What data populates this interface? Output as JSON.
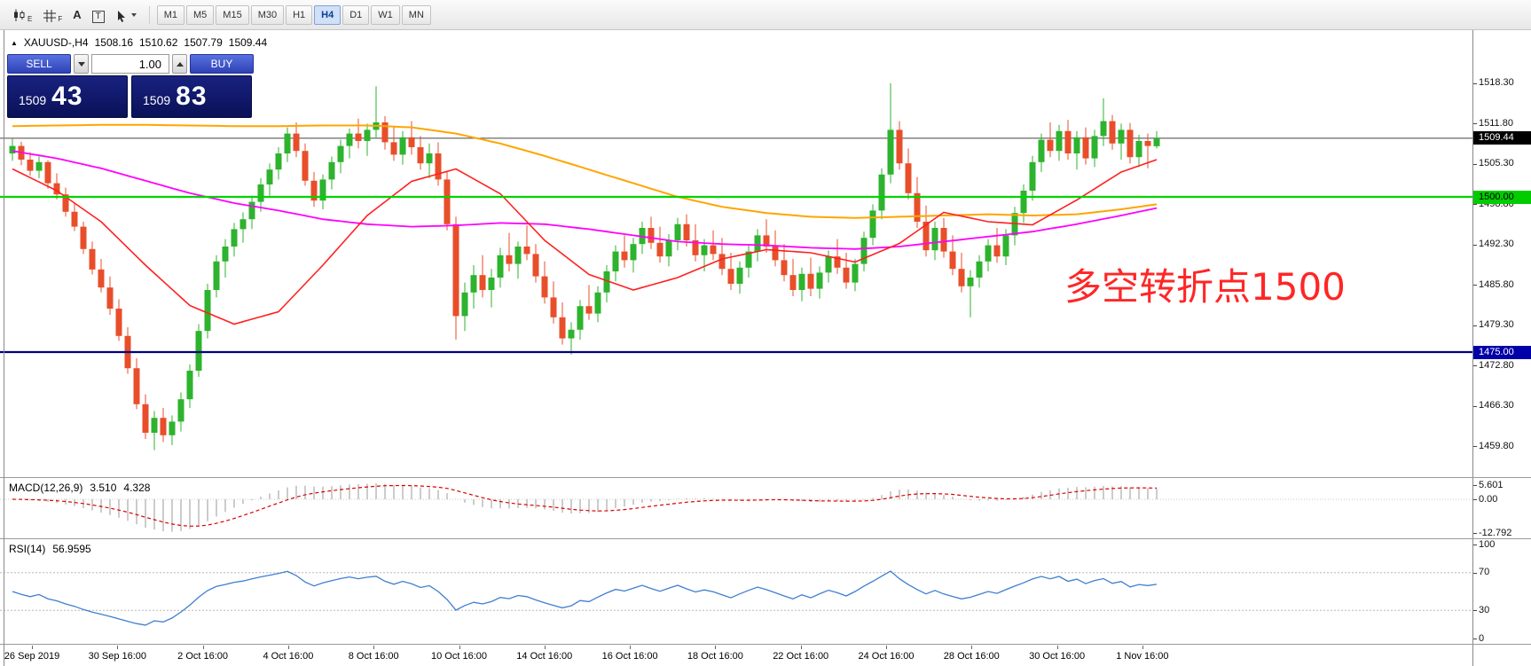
{
  "accent_colors": {
    "buy_sell_blue": "#3a57cc",
    "panel_navy": "#101a78",
    "up_candle": "#2db32d",
    "down_candle": "#e84e2a",
    "ma_orange": "#ffa500",
    "ma_magenta": "#ff00ff",
    "ma_red": "#ff2020",
    "hline_green": "#00d400",
    "hline_navy": "#000080",
    "rsi_blue": "#3e7fd1",
    "macd_histogram": "#b6b6b6",
    "macd_signal": "#dd0000",
    "annotation_red": "#ff2626"
  },
  "toolbar": {
    "icon_subs": [
      "E",
      "F"
    ],
    "icon_labels": {
      "text_tool": "A",
      "label_tool": "T"
    },
    "timeframes": [
      "M1",
      "M5",
      "M15",
      "M30",
      "H1",
      "H4",
      "D1",
      "W1",
      "MN"
    ],
    "active_timeframe": "H4"
  },
  "symbol_header": {
    "marker": "▲",
    "symbol": "XAUUSD-,H4",
    "open": "1508.16",
    "high": "1510.62",
    "low": "1507.79",
    "close": "1509.44"
  },
  "trade_panel": {
    "sell_label": "SELL",
    "buy_label": "BUY",
    "volume": "1.00",
    "bid": {
      "small": "1509",
      "big": "43"
    },
    "ask": {
      "small": "1509",
      "big": "83"
    }
  },
  "price_axis": {
    "ticks": [
      1518.3,
      1511.8,
      1505.3,
      1498.8,
      1492.3,
      1485.8,
      1479.3,
      1472.8,
      1466.3,
      1459.8
    ],
    "current_price": {
      "value": 1509.44,
      "label": "1509.44",
      "bg": "#000000",
      "fg": "#ffffff"
    },
    "levels": [
      {
        "price": 1500.0,
        "label": "1500.00",
        "line": "#00d400",
        "bg": "#00cc00",
        "fg": "#000000"
      },
      {
        "price": 1475.0,
        "label": "1475.00",
        "line": "#000080",
        "bg": "#0000a8",
        "fg": "#ffffff"
      }
    ]
  },
  "annotation": {
    "text": "多空转折点1500"
  },
  "macd_panel": {
    "title": "MACD(12,26,9)",
    "main_value": "3.510",
    "signal_value": "4.328",
    "axis": [
      "5.601",
      "0.00",
      "-12.792"
    ]
  },
  "rsi_panel": {
    "title": "RSI(14)",
    "value": "56.9595",
    "axis": [
      "100",
      "70",
      "30",
      "0"
    ],
    "levels": [
      70,
      30
    ]
  },
  "time_axis": {
    "labels": [
      "26 Sep 2019",
      "30 Sep 16:00",
      "2 Oct 16:00",
      "4 Oct 16:00",
      "8 Oct 16:00",
      "10 Oct 16:00",
      "14 Oct 16:00",
      "16 Oct 16:00",
      "18 Oct 16:00",
      "22 Oct 16:00",
      "24 Oct 16:00",
      "28 Oct 16:00",
      "30 Oct 16:00",
      "1 Nov 16:00"
    ]
  },
  "chart_data": {
    "type": "candlestick",
    "symbol": "XAUUSD-",
    "timeframe": "H4",
    "price_range_visible": [
      1455.4,
      1526.0
    ],
    "bid_price": 1509.44,
    "ohlc": [
      [
        1507.0,
        1509.4,
        1505.8,
        1508.2
      ],
      [
        1508.2,
        1508.9,
        1505.1,
        1506.0
      ],
      [
        1506.0,
        1507.2,
        1503.4,
        1504.2
      ],
      [
        1504.2,
        1506.5,
        1503.0,
        1505.6
      ],
      [
        1505.6,
        1505.9,
        1501.3,
        1502.2
      ],
      [
        1502.2,
        1503.8,
        1499.6,
        1500.4
      ],
      [
        1500.4,
        1501.5,
        1496.8,
        1497.6
      ],
      [
        1497.6,
        1499.0,
        1494.5,
        1495.2
      ],
      [
        1495.2,
        1496.0,
        1490.8,
        1491.6
      ],
      [
        1491.6,
        1492.8,
        1487.5,
        1488.3
      ],
      [
        1488.3,
        1490.0,
        1484.6,
        1485.4
      ],
      [
        1485.4,
        1487.2,
        1481.0,
        1482.0
      ],
      [
        1482.0,
        1483.5,
        1476.8,
        1477.6
      ],
      [
        1477.6,
        1479.0,
        1471.5,
        1472.4
      ],
      [
        1472.4,
        1474.0,
        1465.8,
        1466.6
      ],
      [
        1466.6,
        1468.2,
        1461.0,
        1462.0
      ],
      [
        1462.0,
        1465.5,
        1459.2,
        1464.4
      ],
      [
        1464.4,
        1466.0,
        1460.5,
        1461.6
      ],
      [
        1461.6,
        1464.8,
        1460.0,
        1463.8
      ],
      [
        1463.8,
        1468.5,
        1462.2,
        1467.4
      ],
      [
        1467.4,
        1473.0,
        1466.0,
        1472.0
      ],
      [
        1472.0,
        1479.5,
        1471.0,
        1478.4
      ],
      [
        1478.4,
        1486.0,
        1477.2,
        1485.0
      ],
      [
        1485.0,
        1490.6,
        1483.8,
        1489.6
      ],
      [
        1489.6,
        1493.2,
        1487.0,
        1492.0
      ],
      [
        1492.0,
        1495.8,
        1490.4,
        1494.8
      ],
      [
        1494.8,
        1497.5,
        1492.6,
        1496.4
      ],
      [
        1496.4,
        1500.2,
        1494.8,
        1499.2
      ],
      [
        1499.2,
        1503.0,
        1497.6,
        1502.0
      ],
      [
        1502.0,
        1505.4,
        1500.2,
        1504.4
      ],
      [
        1504.4,
        1508.0,
        1502.8,
        1507.0
      ],
      [
        1507.0,
        1511.2,
        1505.6,
        1510.2
      ],
      [
        1510.2,
        1512.0,
        1506.4,
        1507.4
      ],
      [
        1507.4,
        1508.6,
        1501.8,
        1502.6
      ],
      [
        1502.6,
        1504.0,
        1498.4,
        1499.4
      ],
      [
        1499.4,
        1503.6,
        1498.0,
        1502.8
      ],
      [
        1502.8,
        1506.5,
        1501.2,
        1505.6
      ],
      [
        1505.6,
        1509.2,
        1503.8,
        1508.2
      ],
      [
        1508.2,
        1511.0,
        1506.2,
        1510.2
      ],
      [
        1510.2,
        1512.6,
        1507.8,
        1509.0
      ],
      [
        1509.0,
        1511.8,
        1506.6,
        1510.8
      ],
      [
        1510.8,
        1517.8,
        1509.4,
        1512.0
      ],
      [
        1512.0,
        1513.0,
        1507.6,
        1508.8
      ],
      [
        1508.8,
        1511.4,
        1505.8,
        1506.8
      ],
      [
        1506.8,
        1510.6,
        1505.2,
        1509.6
      ],
      [
        1509.6,
        1512.2,
        1506.8,
        1508.0
      ],
      [
        1508.0,
        1509.8,
        1504.4,
        1505.4
      ],
      [
        1505.4,
        1508.6,
        1503.0,
        1507.0
      ],
      [
        1507.0,
        1508.8,
        1501.8,
        1502.8
      ],
      [
        1502.8,
        1504.2,
        1494.6,
        1495.6
      ],
      [
        1495.6,
        1496.8,
        1477.0,
        1480.8
      ],
      [
        1480.8,
        1486.2,
        1478.4,
        1484.6
      ],
      [
        1484.6,
        1489.0,
        1482.0,
        1487.4
      ],
      [
        1487.4,
        1490.6,
        1483.8,
        1485.0
      ],
      [
        1485.0,
        1488.4,
        1482.2,
        1487.0
      ],
      [
        1487.0,
        1491.8,
        1485.4,
        1490.6
      ],
      [
        1490.6,
        1494.2,
        1488.0,
        1489.2
      ],
      [
        1489.2,
        1492.8,
        1486.8,
        1492.0
      ],
      [
        1492.0,
        1495.4,
        1489.8,
        1490.8
      ],
      [
        1490.8,
        1492.4,
        1486.2,
        1487.2
      ],
      [
        1487.2,
        1489.6,
        1482.8,
        1483.8
      ],
      [
        1483.8,
        1486.4,
        1479.6,
        1480.6
      ],
      [
        1480.6,
        1483.0,
        1476.2,
        1477.2
      ],
      [
        1477.2,
        1479.8,
        1474.6,
        1478.6
      ],
      [
        1478.6,
        1483.4,
        1477.0,
        1482.4
      ],
      [
        1482.4,
        1485.8,
        1480.2,
        1481.2
      ],
      [
        1481.2,
        1485.6,
        1479.8,
        1484.6
      ],
      [
        1484.6,
        1489.0,
        1483.0,
        1488.0
      ],
      [
        1488.0,
        1492.2,
        1486.4,
        1491.2
      ],
      [
        1491.2,
        1493.8,
        1488.6,
        1489.8
      ],
      [
        1489.8,
        1493.4,
        1487.8,
        1492.4
      ],
      [
        1492.4,
        1496.0,
        1490.8,
        1495.0
      ],
      [
        1495.0,
        1496.8,
        1491.6,
        1492.6
      ],
      [
        1492.6,
        1495.2,
        1489.4,
        1490.4
      ],
      [
        1490.4,
        1494.0,
        1488.8,
        1493.0
      ],
      [
        1493.0,
        1496.6,
        1491.4,
        1495.6
      ],
      [
        1495.6,
        1497.2,
        1492.0,
        1493.0
      ],
      [
        1493.0,
        1495.6,
        1489.6,
        1490.6
      ],
      [
        1490.6,
        1493.2,
        1488.0,
        1492.2
      ],
      [
        1492.2,
        1494.6,
        1489.8,
        1490.8
      ],
      [
        1490.8,
        1493.4,
        1487.4,
        1488.4
      ],
      [
        1488.4,
        1491.0,
        1485.0,
        1486.0
      ],
      [
        1486.0,
        1489.6,
        1484.4,
        1488.6
      ],
      [
        1488.6,
        1492.2,
        1487.0,
        1491.2
      ],
      [
        1491.2,
        1494.8,
        1489.6,
        1493.8
      ],
      [
        1493.8,
        1496.4,
        1491.0,
        1492.0
      ],
      [
        1492.0,
        1494.6,
        1488.8,
        1489.8
      ],
      [
        1489.8,
        1492.4,
        1486.4,
        1487.4
      ],
      [
        1487.4,
        1490.0,
        1484.0,
        1485.0
      ],
      [
        1485.0,
        1488.6,
        1483.2,
        1487.6
      ],
      [
        1487.6,
        1490.2,
        1484.0,
        1485.2
      ],
      [
        1485.2,
        1488.8,
        1483.6,
        1487.8
      ],
      [
        1487.8,
        1491.4,
        1486.2,
        1490.4
      ],
      [
        1490.4,
        1493.2,
        1487.6,
        1488.6
      ],
      [
        1488.6,
        1491.0,
        1485.2,
        1486.2
      ],
      [
        1486.2,
        1490.0,
        1484.8,
        1489.2
      ],
      [
        1489.2,
        1494.4,
        1488.0,
        1493.4
      ],
      [
        1493.4,
        1498.8,
        1492.2,
        1497.8
      ],
      [
        1497.8,
        1504.6,
        1496.4,
        1503.6
      ],
      [
        1503.6,
        1518.3,
        1502.2,
        1510.8
      ],
      [
        1510.8,
        1512.2,
        1504.4,
        1505.4
      ],
      [
        1505.4,
        1507.8,
        1499.6,
        1500.6
      ],
      [
        1500.6,
        1503.2,
        1495.0,
        1496.0
      ],
      [
        1496.0,
        1498.6,
        1490.4,
        1491.4
      ],
      [
        1491.4,
        1496.0,
        1489.8,
        1495.0
      ],
      [
        1495.0,
        1496.6,
        1490.2,
        1491.2
      ],
      [
        1491.2,
        1493.8,
        1487.4,
        1488.4
      ],
      [
        1488.4,
        1491.0,
        1484.6,
        1485.6
      ],
      [
        1485.6,
        1488.2,
        1480.6,
        1487.0
      ],
      [
        1487.0,
        1490.6,
        1485.4,
        1489.6
      ],
      [
        1489.6,
        1493.2,
        1488.0,
        1492.2
      ],
      [
        1492.2,
        1495.0,
        1489.4,
        1490.4
      ],
      [
        1490.4,
        1494.8,
        1489.0,
        1493.8
      ],
      [
        1493.8,
        1498.4,
        1492.2,
        1497.4
      ],
      [
        1497.4,
        1502.0,
        1495.8,
        1501.0
      ],
      [
        1501.0,
        1506.6,
        1499.4,
        1505.6
      ],
      [
        1505.6,
        1510.2,
        1504.0,
        1509.2
      ],
      [
        1509.2,
        1512.0,
        1506.4,
        1507.4
      ],
      [
        1507.4,
        1511.6,
        1505.8,
        1510.6
      ],
      [
        1510.6,
        1512.4,
        1506.0,
        1507.0
      ],
      [
        1507.0,
        1510.6,
        1504.4,
        1509.6
      ],
      [
        1509.6,
        1511.2,
        1505.2,
        1506.2
      ],
      [
        1506.2,
        1510.8,
        1504.8,
        1509.8
      ],
      [
        1509.8,
        1515.9,
        1508.2,
        1512.2
      ],
      [
        1512.2,
        1513.2,
        1507.6,
        1508.6
      ],
      [
        1508.6,
        1511.8,
        1506.0,
        1510.8
      ],
      [
        1510.8,
        1511.9,
        1505.4,
        1506.4
      ],
      [
        1506.4,
        1510.0,
        1504.8,
        1509.0
      ],
      [
        1509.0,
        1510.2,
        1504.6,
        1508.2
      ],
      [
        1508.16,
        1510.62,
        1507.79,
        1509.44
      ]
    ],
    "ma_keypoint_step": 5,
    "ma_orange": [
      1511.4,
      1511.5,
      1511.6,
      1511.6,
      1511.5,
      1511.4,
      1511.4,
      1511.5,
      1511.5,
      1511.2,
      1510.2,
      1508.6,
      1506.6,
      1504.4,
      1502.2,
      1500.0,
      1498.4,
      1497.4,
      1496.8,
      1496.6,
      1496.8,
      1497.0,
      1497.2,
      1497.0,
      1497.2,
      1498.0,
      1498.8
    ],
    "ma_magenta": [
      1507.4,
      1506.2,
      1504.6,
      1502.6,
      1500.6,
      1499.0,
      1497.8,
      1496.4,
      1495.6,
      1495.2,
      1495.4,
      1495.8,
      1495.6,
      1494.8,
      1493.8,
      1492.8,
      1492.4,
      1492.2,
      1491.8,
      1491.6,
      1492.0,
      1492.8,
      1493.6,
      1494.4,
      1495.6,
      1497.0,
      1498.2
    ],
    "ma_red": [
      1504.5,
      1501.0,
      1496.0,
      1489.0,
      1482.5,
      1479.5,
      1481.5,
      1489.0,
      1497.0,
      1502.5,
      1504.5,
      1500.5,
      1493.0,
      1487.5,
      1485.0,
      1487.0,
      1490.0,
      1491.5,
      1491.0,
      1489.5,
      1492.5,
      1497.5,
      1496.0,
      1495.5,
      1499.5,
      1504.0,
      1506.0
    ],
    "indicators": {
      "macd": {
        "params": [
          12,
          26,
          9
        ],
        "last_main": 3.51,
        "last_signal": 4.328,
        "scale_max": 5.601,
        "scale_min": -12.792
      },
      "rsi": {
        "period": 14,
        "last": 56.9595,
        "levels": [
          70,
          30
        ],
        "range": [
          0,
          100
        ]
      }
    }
  }
}
